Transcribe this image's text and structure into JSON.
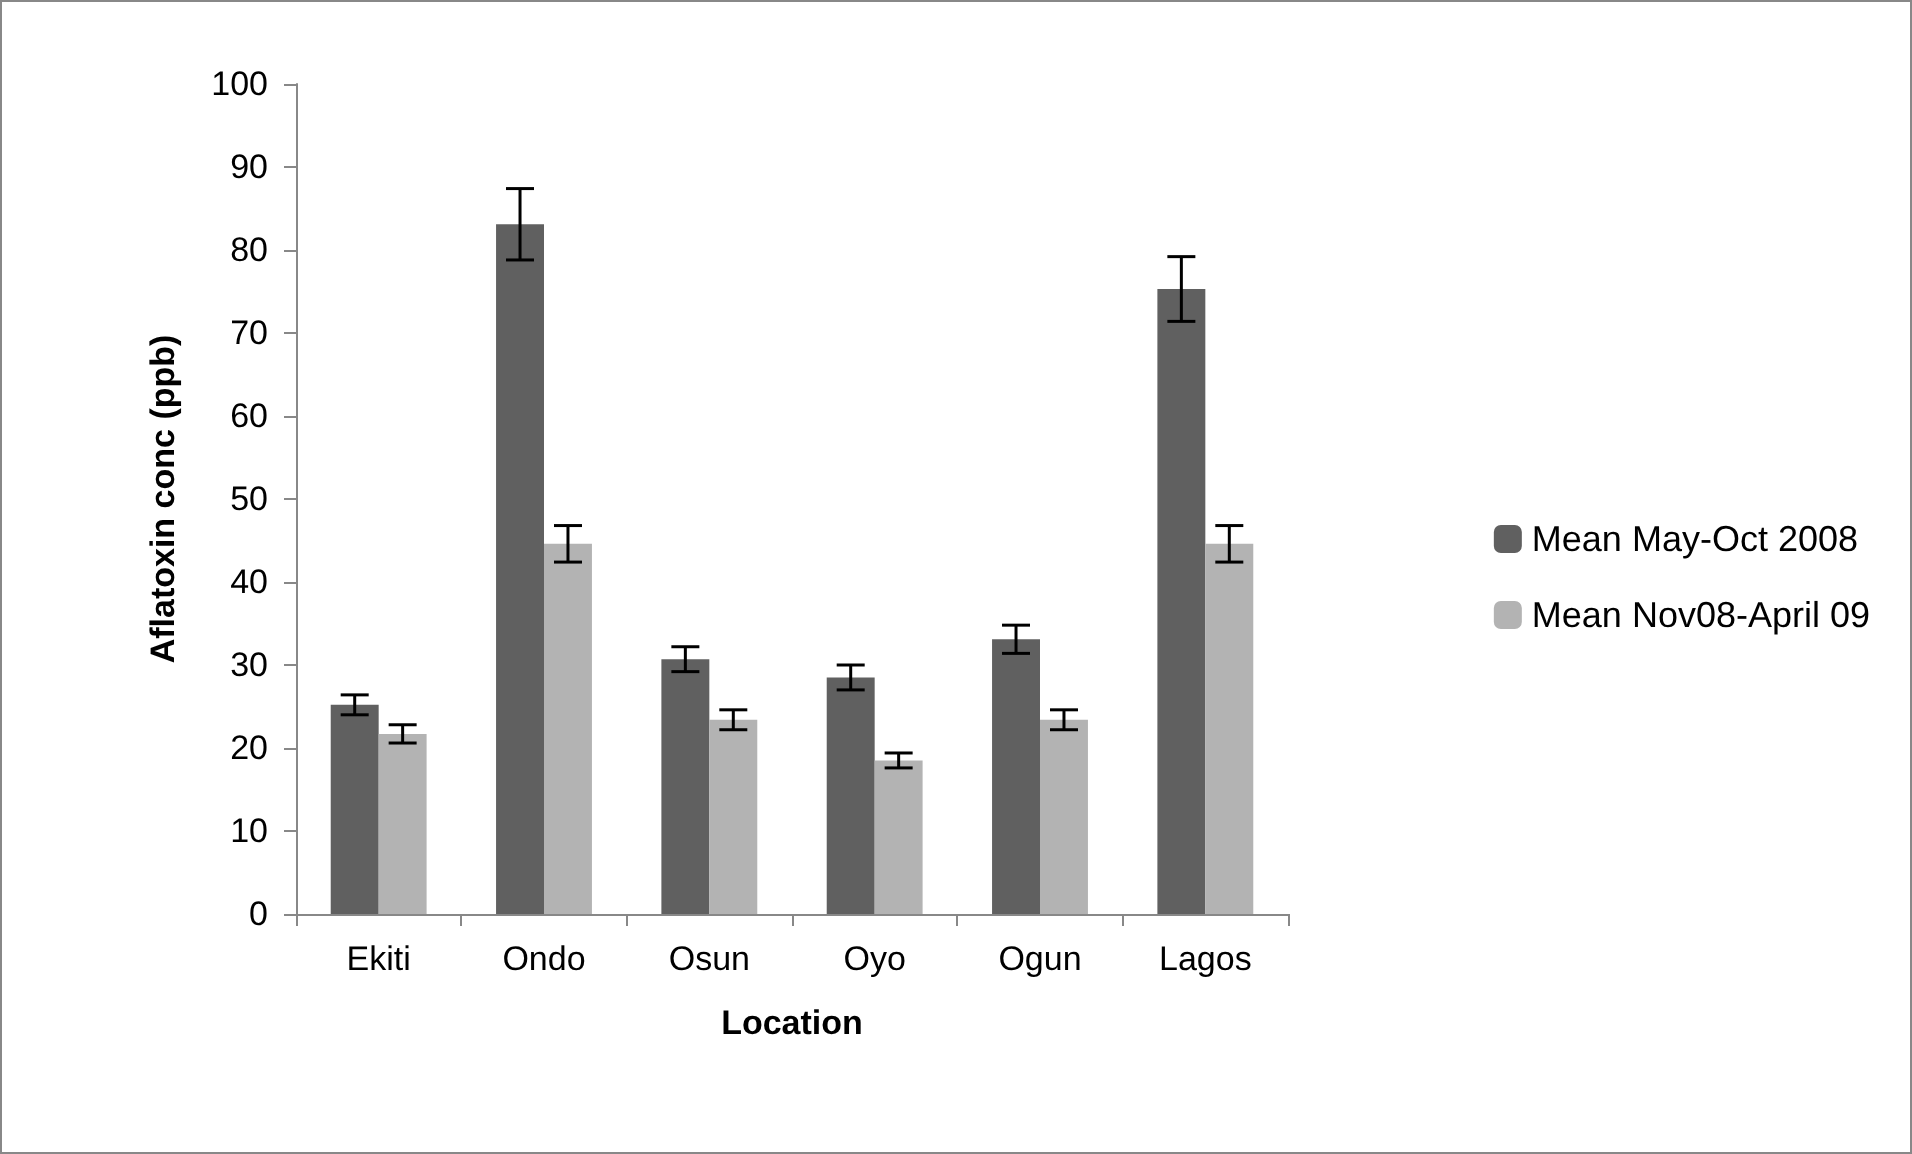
{
  "chart_data": {
    "type": "bar",
    "xlabel": "Location",
    "ylabel": "Aflatoxin conc (ppb)",
    "categories": [
      "Ekiti",
      "Ondo",
      "Osun",
      "Oyo",
      "Ogun",
      "Lagos"
    ],
    "series": [
      {
        "name": "Mean May-Oct 2008",
        "color": "#606060",
        "values": [
          25.2,
          83.1,
          30.7,
          28.5,
          33.1,
          75.3
        ],
        "errors": [
          1.2,
          4.3,
          1.5,
          1.5,
          1.7,
          3.9
        ]
      },
      {
        "name": "Mean Nov08-April 09",
        "color": "#b3b3b3",
        "values": [
          21.7,
          44.6,
          23.4,
          18.5,
          23.4,
          44.6
        ],
        "errors": [
          1.1,
          2.2,
          1.2,
          0.9,
          1.2,
          2.2
        ]
      }
    ],
    "ylim": [
      0,
      100
    ],
    "yticks": [
      0,
      10,
      20,
      30,
      40,
      50,
      60,
      70,
      80,
      90,
      100
    ],
    "grid": false,
    "legend": "right"
  }
}
